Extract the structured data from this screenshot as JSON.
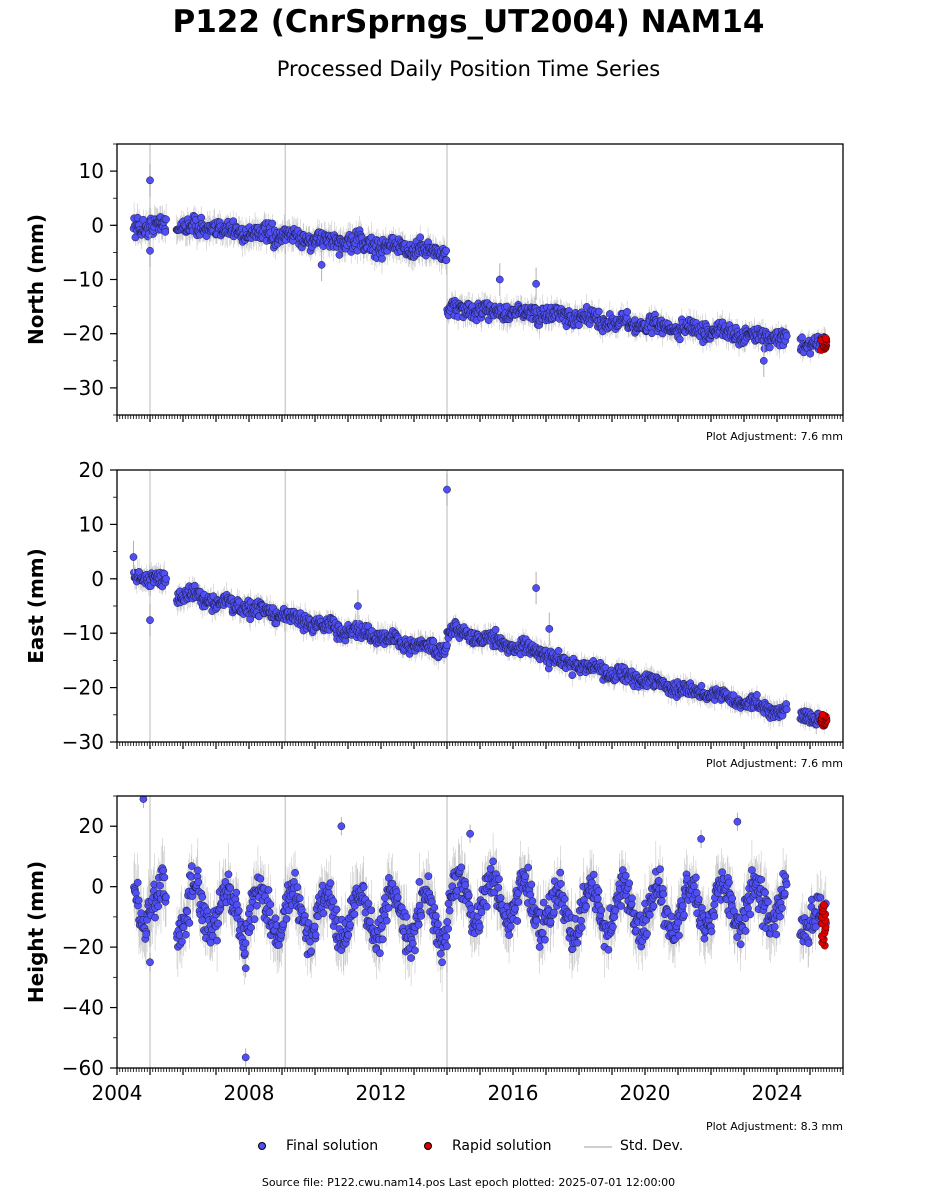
{
  "title": "P122 (CnrSprngs_UT2004) NAM14",
  "subtitle": "Processed Daily Position Time Series",
  "legend": {
    "final_label": "Final solution",
    "rapid_label": "Rapid solution",
    "std_label": "Std. Dev."
  },
  "footer": "Source file: P122.cwu.nam14.pos  Last epoch plotted: 2025-07-01 12:00:00",
  "colors": {
    "final": "#4f4ff5",
    "rapid": "#e00000",
    "std_dev": "#c8c8c8",
    "event_line": "#d0d0d0"
  },
  "chart_data": [
    {
      "type": "scatter",
      "ylabel": "North (mm)",
      "xlim": [
        2004.0,
        2026.0
      ],
      "ylim": [
        -35,
        15
      ],
      "yticks": [
        10,
        0,
        -10,
        -20,
        -30
      ],
      "adjustment": "Plot Adjustment: 7.6 mm",
      "event_lines": [
        2005.0,
        2009.1,
        2014.0
      ],
      "segments": [
        {
          "x0": 2004.5,
          "x1": 2005.5,
          "y0": -0.5,
          "y1": 0.2,
          "noise": 1.3,
          "season": 0.3
        },
        {
          "x0": 2005.8,
          "x1": 2014.0,
          "y0": 0.0,
          "y1": -5.0,
          "noise": 1.2,
          "season": 0.4
        },
        {
          "x0": 2014.0,
          "x1": 2017.0,
          "y0": -15.5,
          "y1": -16.5,
          "noise": 1.1,
          "season": 0.5
        },
        {
          "x0": 2017.0,
          "x1": 2024.3,
          "y0": -16.5,
          "y1": -21.0,
          "noise": 1.0,
          "season": 0.5
        },
        {
          "x0": 2024.7,
          "x1": 2025.5,
          "y0": -22.0,
          "y1": -22.0,
          "noise": 0.9,
          "season": 0.3
        }
      ],
      "outliers": [
        {
          "x": 2005.0,
          "y": 8.3
        },
        {
          "x": 2005.0,
          "y": -4.7
        },
        {
          "x": 2015.6,
          "y": -10.0
        },
        {
          "x": 2016.7,
          "y": -10.8
        },
        {
          "x": 2010.2,
          "y": -7.3
        },
        {
          "x": 2023.6,
          "y": -25.0
        }
      ],
      "rapid": {
        "x0": 2025.33,
        "x1": 2025.5,
        "y_min": -23.0,
        "y_max": -20.8
      }
    },
    {
      "type": "scatter",
      "ylabel": "East (mm)",
      "xlim": [
        2004.0,
        2026.0
      ],
      "ylim": [
        -30,
        20
      ],
      "yticks": [
        20,
        10,
        0,
        -10,
        -20,
        -30
      ],
      "adjustment": "Plot Adjustment: 7.6 mm",
      "event_lines": [
        2005.0,
        2009.1,
        2014.0
      ],
      "segments": [
        {
          "x0": 2004.5,
          "x1": 2005.5,
          "y0": 0.5,
          "y1": -0.5,
          "noise": 1.0,
          "season": 0.3
        },
        {
          "x0": 2005.8,
          "x1": 2014.0,
          "y0": -2.5,
          "y1": -13.5,
          "noise": 1.0,
          "season": 0.4
        },
        {
          "x0": 2014.0,
          "x1": 2017.0,
          "y0": -9.5,
          "y1": -13.5,
          "noise": 0.9,
          "season": 0.4
        },
        {
          "x0": 2017.0,
          "x1": 2024.3,
          "y0": -14.5,
          "y1": -24.5,
          "noise": 0.9,
          "season": 0.4
        },
        {
          "x0": 2024.7,
          "x1": 2025.5,
          "y0": -25.0,
          "y1": -26.5,
          "noise": 0.8,
          "season": 0.3
        }
      ],
      "outliers": [
        {
          "x": 2014.0,
          "y": 16.4
        },
        {
          "x": 2016.7,
          "y": -1.7
        },
        {
          "x": 2005.0,
          "y": -7.6
        },
        {
          "x": 2011.3,
          "y": -5.0
        },
        {
          "x": 2017.1,
          "y": -9.2
        },
        {
          "x": 2004.5,
          "y": 4.0
        }
      ],
      "rapid": {
        "x0": 2025.33,
        "x1": 2025.5,
        "y_min": -27.0,
        "y_max": -25.0
      }
    },
    {
      "type": "scatter",
      "ylabel": "Height (mm)",
      "xlim": [
        2004.0,
        2026.0
      ],
      "ylim": [
        -60,
        30
      ],
      "yticks": [
        20,
        0,
        -20,
        -40,
        -60
      ],
      "xticks": [
        2004,
        2008,
        2012,
        2016,
        2020,
        2024
      ],
      "adjustment": "Plot Adjustment: 8.3 mm",
      "event_lines": [
        2005.0,
        2009.1,
        2014.0
      ],
      "segments": [
        {
          "x0": 2004.5,
          "x1": 2005.5,
          "y0": -5.0,
          "y1": -6.0,
          "noise": 5.0,
          "season": 7.0
        },
        {
          "x0": 2005.8,
          "x1": 2014.0,
          "y0": -8.0,
          "y1": -10.0,
          "noise": 4.5,
          "season": 7.5
        },
        {
          "x0": 2014.0,
          "x1": 2017.0,
          "y0": -3.0,
          "y1": -6.0,
          "noise": 4.5,
          "season": 7.0
        },
        {
          "x0": 2017.0,
          "x1": 2024.3,
          "y0": -9.0,
          "y1": -5.0,
          "noise": 4.5,
          "season": 7.5
        },
        {
          "x0": 2024.7,
          "x1": 2025.5,
          "y0": -10.0,
          "y1": -12.0,
          "noise": 4.0,
          "season": 5.0
        }
      ],
      "outliers": [
        {
          "x": 2004.8,
          "y": 29.0
        },
        {
          "x": 2007.9,
          "y": -56.5
        },
        {
          "x": 2007.9,
          "y": -27.0
        },
        {
          "x": 2010.8,
          "y": 20.0
        },
        {
          "x": 2022.8,
          "y": 21.5
        },
        {
          "x": 2014.7,
          "y": 17.5
        },
        {
          "x": 2021.7,
          "y": 15.8
        },
        {
          "x": 2005.0,
          "y": -25.0
        }
      ],
      "rapid": {
        "x0": 2025.33,
        "x1": 2025.5,
        "y_min": -19.5,
        "y_max": -6.0
      }
    }
  ]
}
